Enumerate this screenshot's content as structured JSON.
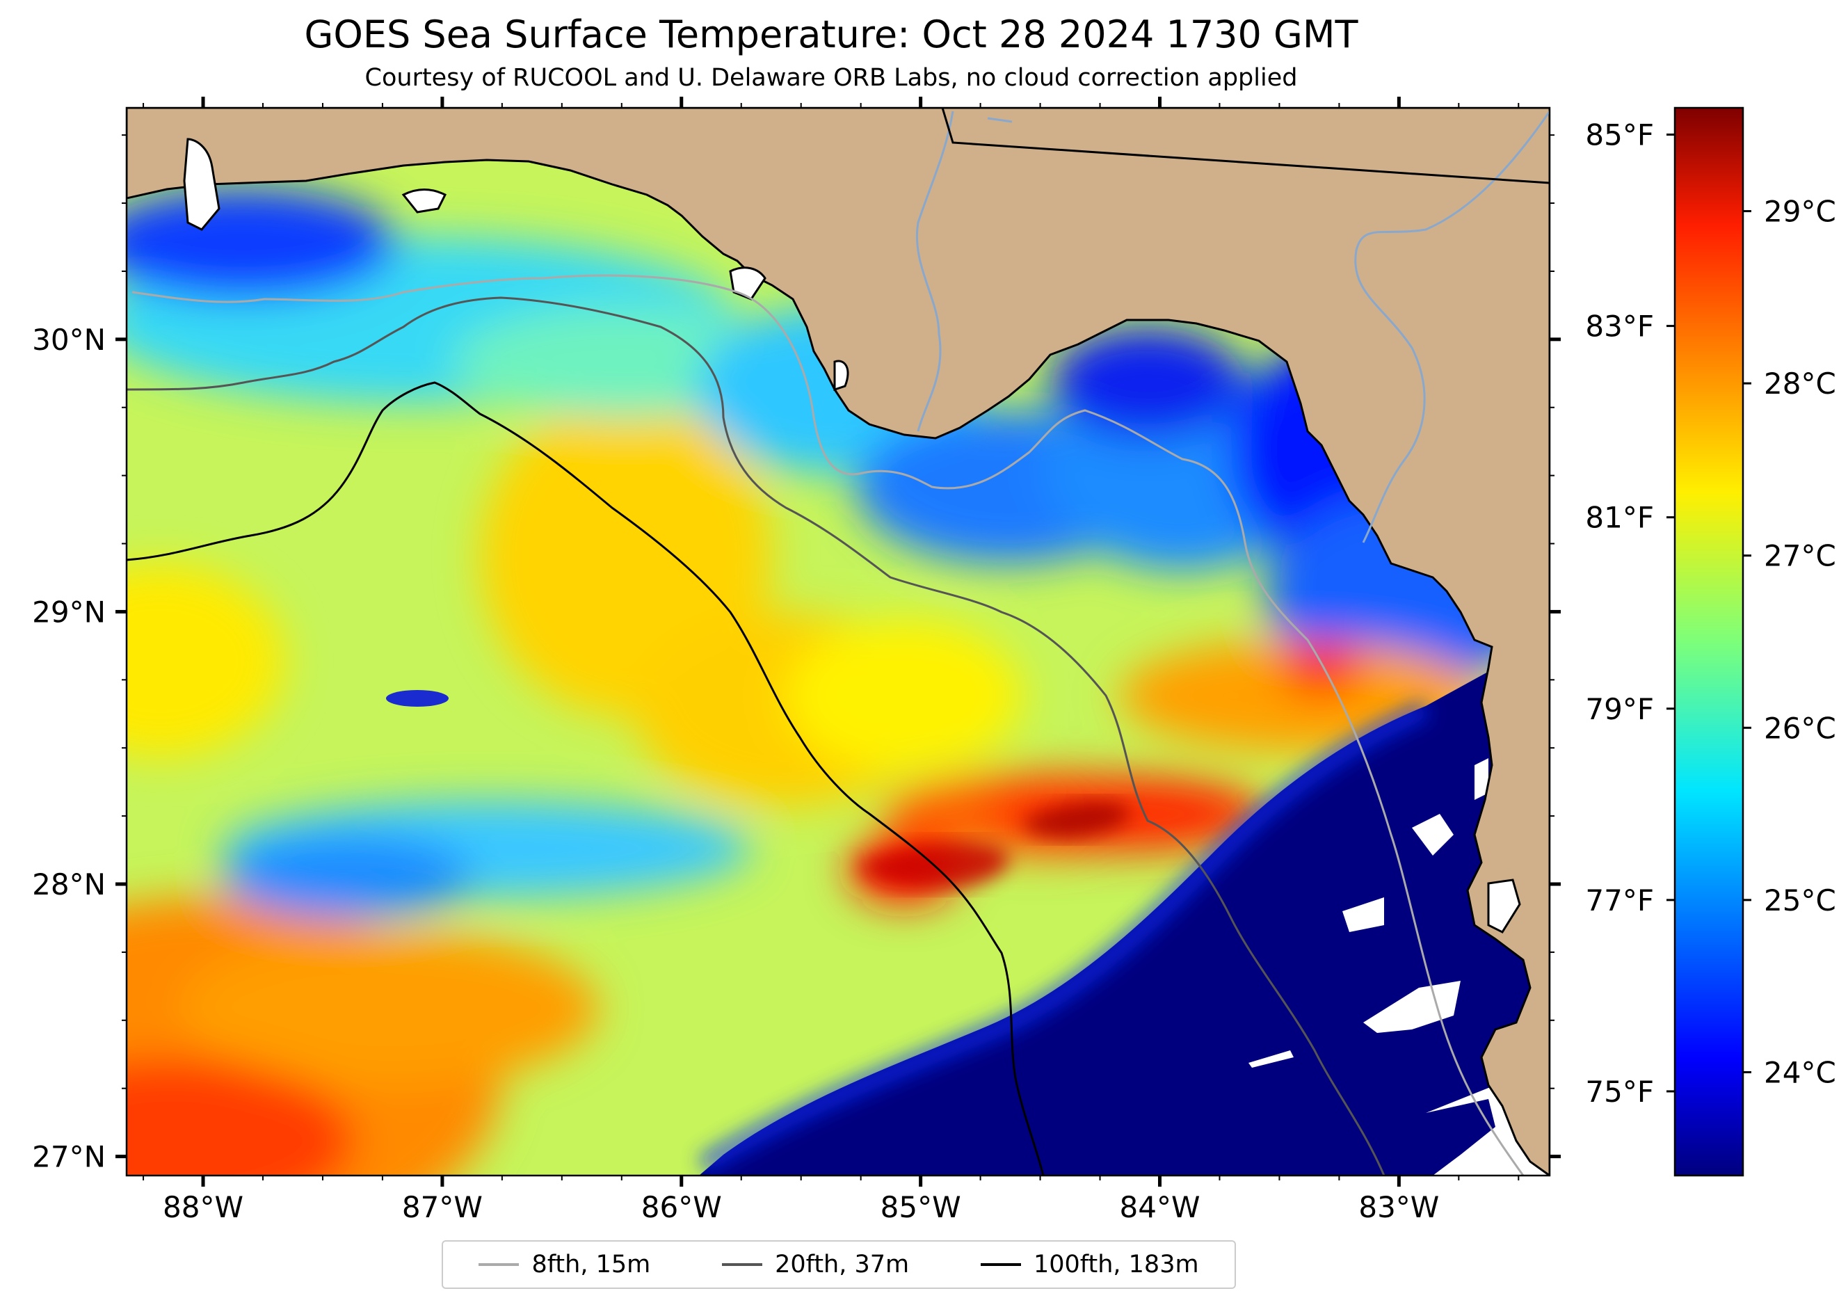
{
  "title": "GOES Sea Surface Temperature: Oct 28 2024 1730 GMT",
  "subtitle": "Courtesy of RUCOOL and U. Delaware ORB Labs, no cloud correction applied",
  "colors": {
    "land": "#cfb08b",
    "coast": "#000000",
    "river": "#8aa8cc",
    "cloud_masked": "#ffffff",
    "isobath_8fth": "#aaaaaa",
    "isobath_20fth": "#555555",
    "isobath_100fth": "#000000"
  },
  "map": {
    "lon_range": [
      -88.32,
      -82.37
    ],
    "lat_range": [
      26.93,
      30.85
    ],
    "lon_ticks": [
      {
        "value": -88,
        "label": "88°W"
      },
      {
        "value": -87,
        "label": "87°W"
      },
      {
        "value": -86,
        "label": "86°W"
      },
      {
        "value": -85,
        "label": "85°W"
      },
      {
        "value": -84,
        "label": "84°W"
      },
      {
        "value": -83,
        "label": "83°W"
      }
    ],
    "lat_ticks": [
      {
        "value": 27,
        "label": "27°N"
      },
      {
        "value": 28,
        "label": "28°N"
      },
      {
        "value": 29,
        "label": "29°N"
      },
      {
        "value": 30,
        "label": "30°N"
      }
    ]
  },
  "colorbar": {
    "colormap": "jet",
    "celsius_range": [
      23.4,
      29.6
    ],
    "celsius_ticks": [
      {
        "value": 24,
        "label": "24°C"
      },
      {
        "value": 25,
        "label": "25°C"
      },
      {
        "value": 26,
        "label": "26°C"
      },
      {
        "value": 27,
        "label": "27°C"
      },
      {
        "value": 28,
        "label": "28°C"
      },
      {
        "value": 29,
        "label": "29°C"
      }
    ],
    "fahrenheit_ticks": [
      {
        "value": 75,
        "label": "75°F"
      },
      {
        "value": 77,
        "label": "77°F"
      },
      {
        "value": 79,
        "label": "79°F"
      },
      {
        "value": 81,
        "label": "81°F"
      },
      {
        "value": 83,
        "label": "83°F"
      },
      {
        "value": 85,
        "label": "85°F"
      }
    ]
  },
  "legend": [
    {
      "label": "8fth, 15m",
      "color": "#aaaaaa"
    },
    {
      "label": "20fth, 37m",
      "color": "#555555"
    },
    {
      "label": "100fth, 183m",
      "color": "#000000"
    }
  ]
}
